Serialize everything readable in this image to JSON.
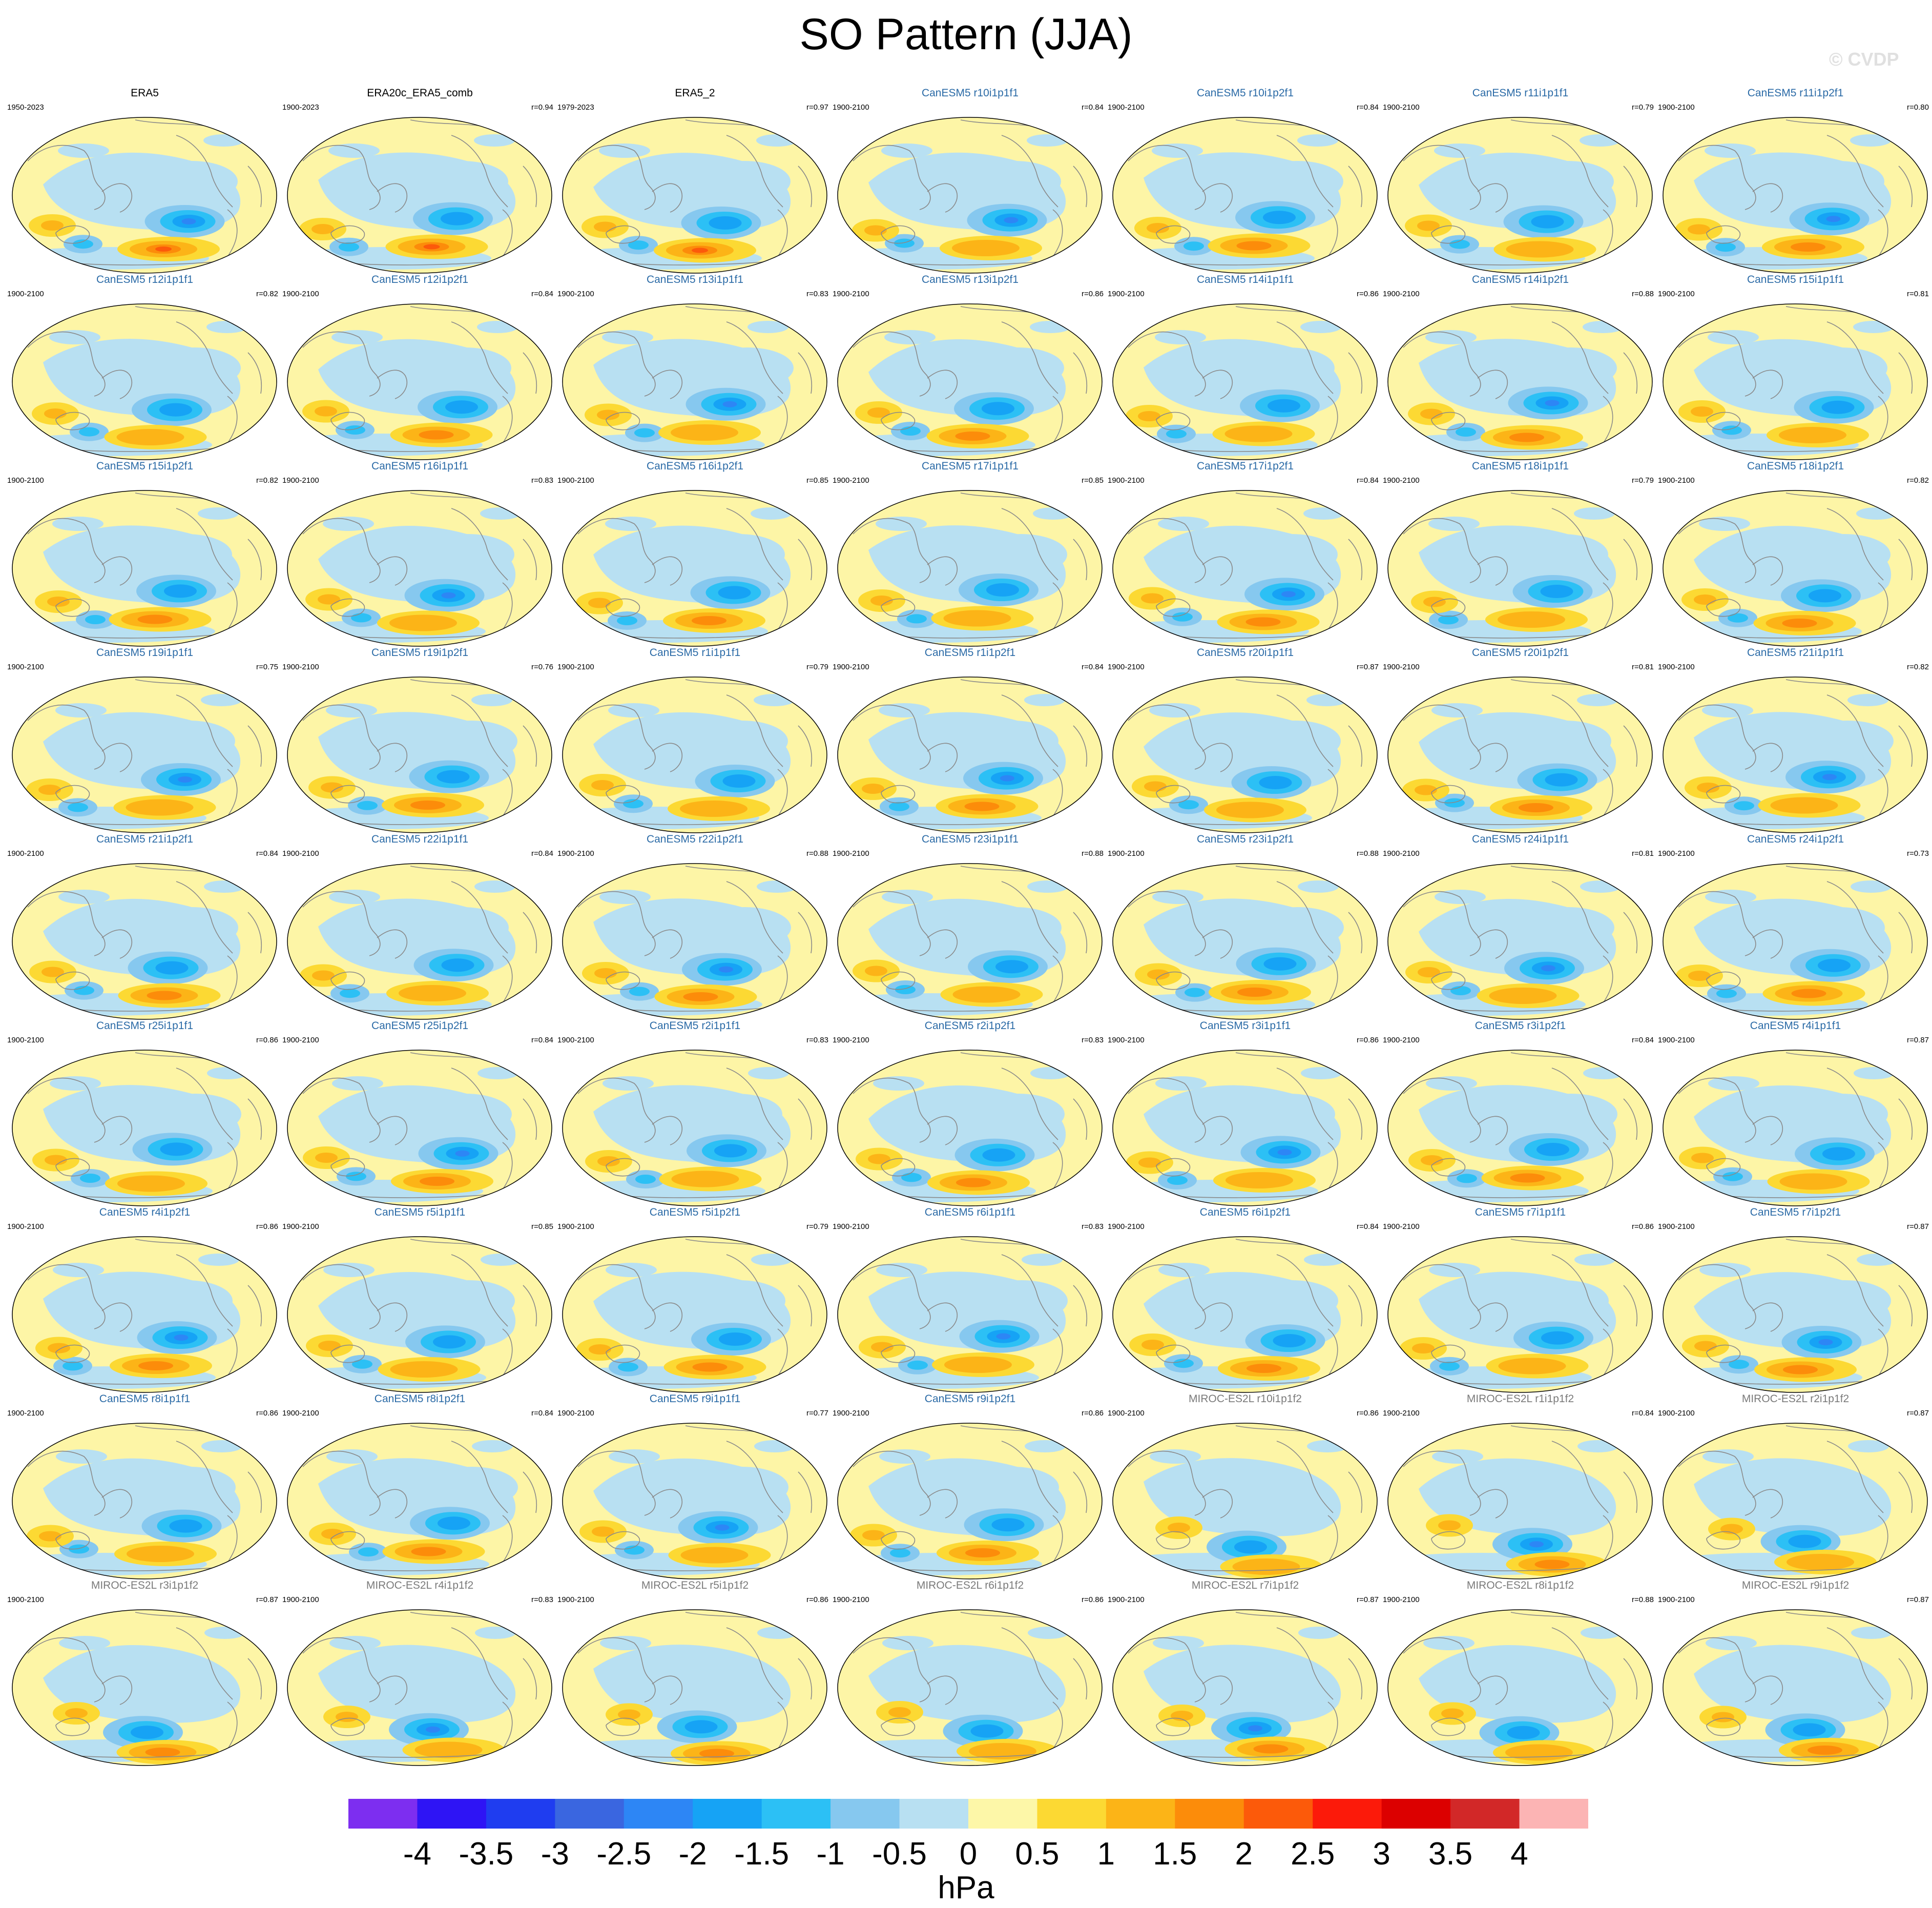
{
  "title": "SO Pattern (JJA)",
  "watermark": "© CVDP",
  "units": "hPa",
  "colors": {
    "title_reference": "#000000",
    "title_canesm5": "#2a6aa6",
    "title_miroc": "#7a7a7a",
    "ocean_bg": "#fdf5a6",
    "coast": "#8a8a8a"
  },
  "colorbar": {
    "levels": [
      "-4",
      "-3.5",
      "-3",
      "-2.5",
      "-2",
      "-1.5",
      "-1",
      "-0.5",
      "0",
      "0.5",
      "1",
      "1.5",
      "2",
      "2.5",
      "3",
      "3.5",
      "4"
    ],
    "colors": [
      "#7d2ef0",
      "#2e14f5",
      "#1f3df0",
      "#3a66e0",
      "#2d86f5",
      "#16a3f5",
      "#2cc0f5",
      "#86c8ef",
      "#b8e0f2",
      "#fdf7a8",
      "#fcd933",
      "#fcb417",
      "#fc8c0a",
      "#fc5a0a",
      "#fc1a0a",
      "#dc0000",
      "#d22828",
      "#fcb4b4"
    ]
  },
  "panels": [
    {
      "name": "ERA5",
      "years": "1950-2023",
      "corr": "",
      "group": "ref"
    },
    {
      "name": "ERA20c_ERA5_comb",
      "years": "1900-2023",
      "corr": "r=0.94",
      "group": "ref"
    },
    {
      "name": "ERA5_2",
      "years": "1979-2023",
      "corr": "r=0.97",
      "group": "ref"
    },
    {
      "name": "CanESM5 r10i1p1f1",
      "years": "1900-2100",
      "corr": "r=0.84",
      "group": "canesm5"
    },
    {
      "name": "CanESM5 r10i1p2f1",
      "years": "1900-2100",
      "corr": "r=0.84",
      "group": "canesm5"
    },
    {
      "name": "CanESM5 r11i1p1f1",
      "years": "1900-2100",
      "corr": "r=0.79",
      "group": "canesm5"
    },
    {
      "name": "CanESM5 r11i1p2f1",
      "years": "1900-2100",
      "corr": "r=0.80",
      "group": "canesm5"
    },
    {
      "name": "CanESM5 r12i1p1f1",
      "years": "1900-2100",
      "corr": "r=0.82",
      "group": "canesm5"
    },
    {
      "name": "CanESM5 r12i1p2f1",
      "years": "1900-2100",
      "corr": "r=0.84",
      "group": "canesm5"
    },
    {
      "name": "CanESM5 r13i1p1f1",
      "years": "1900-2100",
      "corr": "r=0.83",
      "group": "canesm5"
    },
    {
      "name": "CanESM5 r13i1p2f1",
      "years": "1900-2100",
      "corr": "r=0.86",
      "group": "canesm5"
    },
    {
      "name": "CanESM5 r14i1p1f1",
      "years": "1900-2100",
      "corr": "r=0.86",
      "group": "canesm5"
    },
    {
      "name": "CanESM5 r14i1p2f1",
      "years": "1900-2100",
      "corr": "r=0.88",
      "group": "canesm5"
    },
    {
      "name": "CanESM5 r15i1p1f1",
      "years": "1900-2100",
      "corr": "r=0.81",
      "group": "canesm5"
    },
    {
      "name": "CanESM5 r15i1p2f1",
      "years": "1900-2100",
      "corr": "r=0.82",
      "group": "canesm5"
    },
    {
      "name": "CanESM5 r16i1p1f1",
      "years": "1900-2100",
      "corr": "r=0.83",
      "group": "canesm5"
    },
    {
      "name": "CanESM5 r16i1p2f1",
      "years": "1900-2100",
      "corr": "r=0.85",
      "group": "canesm5"
    },
    {
      "name": "CanESM5 r17i1p1f1",
      "years": "1900-2100",
      "corr": "r=0.85",
      "group": "canesm5"
    },
    {
      "name": "CanESM5 r17i1p2f1",
      "years": "1900-2100",
      "corr": "r=0.84",
      "group": "canesm5"
    },
    {
      "name": "CanESM5 r18i1p1f1",
      "years": "1900-2100",
      "corr": "r=0.79",
      "group": "canesm5"
    },
    {
      "name": "CanESM5 r18i1p2f1",
      "years": "1900-2100",
      "corr": "r=0.82",
      "group": "canesm5"
    },
    {
      "name": "CanESM5 r19i1p1f1",
      "years": "1900-2100",
      "corr": "r=0.75",
      "group": "canesm5"
    },
    {
      "name": "CanESM5 r19i1p2f1",
      "years": "1900-2100",
      "corr": "r=0.76",
      "group": "canesm5"
    },
    {
      "name": "CanESM5 r1i1p1f1",
      "years": "1900-2100",
      "corr": "r=0.79",
      "group": "canesm5"
    },
    {
      "name": "CanESM5 r1i1p2f1",
      "years": "1900-2100",
      "corr": "r=0.84",
      "group": "canesm5"
    },
    {
      "name": "CanESM5 r20i1p1f1",
      "years": "1900-2100",
      "corr": "r=0.87",
      "group": "canesm5"
    },
    {
      "name": "CanESM5 r20i1p2f1",
      "years": "1900-2100",
      "corr": "r=0.81",
      "group": "canesm5"
    },
    {
      "name": "CanESM5 r21i1p1f1",
      "years": "1900-2100",
      "corr": "r=0.82",
      "group": "canesm5"
    },
    {
      "name": "CanESM5 r21i1p2f1",
      "years": "1900-2100",
      "corr": "r=0.84",
      "group": "canesm5"
    },
    {
      "name": "CanESM5 r22i1p1f1",
      "years": "1900-2100",
      "corr": "r=0.84",
      "group": "canesm5"
    },
    {
      "name": "CanESM5 r22i1p2f1",
      "years": "1900-2100",
      "corr": "r=0.88",
      "group": "canesm5"
    },
    {
      "name": "CanESM5 r23i1p1f1",
      "years": "1900-2100",
      "corr": "r=0.88",
      "group": "canesm5"
    },
    {
      "name": "CanESM5 r23i1p2f1",
      "years": "1900-2100",
      "corr": "r=0.88",
      "group": "canesm5"
    },
    {
      "name": "CanESM5 r24i1p1f1",
      "years": "1900-2100",
      "corr": "r=0.81",
      "group": "canesm5"
    },
    {
      "name": "CanESM5 r24i1p2f1",
      "years": "1900-2100",
      "corr": "r=0.73",
      "group": "canesm5"
    },
    {
      "name": "CanESM5 r25i1p1f1",
      "years": "1900-2100",
      "corr": "r=0.86",
      "group": "canesm5"
    },
    {
      "name": "CanESM5 r25i1p2f1",
      "years": "1900-2100",
      "corr": "r=0.84",
      "group": "canesm5"
    },
    {
      "name": "CanESM5 r2i1p1f1",
      "years": "1900-2100",
      "corr": "r=0.83",
      "group": "canesm5"
    },
    {
      "name": "CanESM5 r2i1p2f1",
      "years": "1900-2100",
      "corr": "r=0.83",
      "group": "canesm5"
    },
    {
      "name": "CanESM5 r3i1p1f1",
      "years": "1900-2100",
      "corr": "r=0.86",
      "group": "canesm5"
    },
    {
      "name": "CanESM5 r3i1p2f1",
      "years": "1900-2100",
      "corr": "r=0.84",
      "group": "canesm5"
    },
    {
      "name": "CanESM5 r4i1p1f1",
      "years": "1900-2100",
      "corr": "r=0.87",
      "group": "canesm5"
    },
    {
      "name": "CanESM5 r4i1p2f1",
      "years": "1900-2100",
      "corr": "r=0.86",
      "group": "canesm5"
    },
    {
      "name": "CanESM5 r5i1p1f1",
      "years": "1900-2100",
      "corr": "r=0.85",
      "group": "canesm5"
    },
    {
      "name": "CanESM5 r5i1p2f1",
      "years": "1900-2100",
      "corr": "r=0.79",
      "group": "canesm5"
    },
    {
      "name": "CanESM5 r6i1p1f1",
      "years": "1900-2100",
      "corr": "r=0.83",
      "group": "canesm5"
    },
    {
      "name": "CanESM5 r6i1p2f1",
      "years": "1900-2100",
      "corr": "r=0.84",
      "group": "canesm5"
    },
    {
      "name": "CanESM5 r7i1p1f1",
      "years": "1900-2100",
      "corr": "r=0.86",
      "group": "canesm5"
    },
    {
      "name": "CanESM5 r7i1p2f1",
      "years": "1900-2100",
      "corr": "r=0.87",
      "group": "canesm5"
    },
    {
      "name": "CanESM5 r8i1p1f1",
      "years": "1900-2100",
      "corr": "r=0.86",
      "group": "canesm5"
    },
    {
      "name": "CanESM5 r8i1p2f1",
      "years": "1900-2100",
      "corr": "r=0.84",
      "group": "canesm5"
    },
    {
      "name": "CanESM5 r9i1p1f1",
      "years": "1900-2100",
      "corr": "r=0.77",
      "group": "canesm5"
    },
    {
      "name": "CanESM5 r9i1p2f1",
      "years": "1900-2100",
      "corr": "r=0.86",
      "group": "canesm5"
    },
    {
      "name": "MIROC-ES2L r10i1p1f2",
      "years": "1900-2100",
      "corr": "r=0.86",
      "group": "miroc"
    },
    {
      "name": "MIROC-ES2L r1i1p1f2",
      "years": "1900-2100",
      "corr": "r=0.84",
      "group": "miroc"
    },
    {
      "name": "MIROC-ES2L r2i1p1f2",
      "years": "1900-2100",
      "corr": "r=0.87",
      "group": "miroc"
    },
    {
      "name": "MIROC-ES2L r3i1p1f2",
      "years": "1900-2100",
      "corr": "r=0.87",
      "group": "miroc"
    },
    {
      "name": "MIROC-ES2L r4i1p1f2",
      "years": "1900-2100",
      "corr": "r=0.83",
      "group": "miroc"
    },
    {
      "name": "MIROC-ES2L r5i1p1f2",
      "years": "1900-2100",
      "corr": "r=0.86",
      "group": "miroc"
    },
    {
      "name": "MIROC-ES2L r6i1p1f2",
      "years": "1900-2100",
      "corr": "r=0.86",
      "group": "miroc"
    },
    {
      "name": "MIROC-ES2L r7i1p1f2",
      "years": "1900-2100",
      "corr": "r=0.87",
      "group": "miroc"
    },
    {
      "name": "MIROC-ES2L r8i1p1f2",
      "years": "1900-2100",
      "corr": "r=0.88",
      "group": "miroc"
    },
    {
      "name": "MIROC-ES2L r9i1p1f2",
      "years": "1900-2100",
      "corr": "r=0.87",
      "group": "miroc"
    }
  ]
}
